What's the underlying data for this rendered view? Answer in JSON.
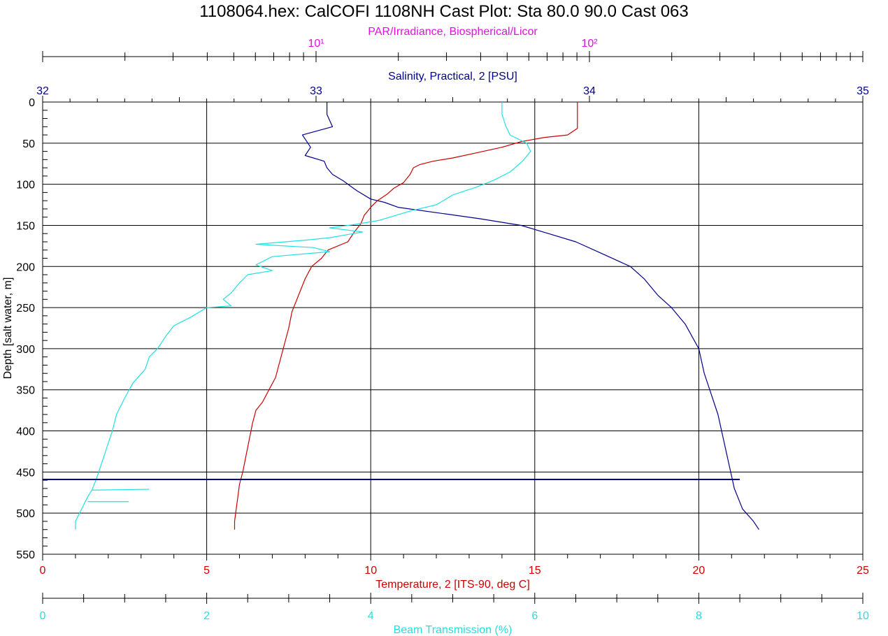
{
  "title": "1108064.hex: CalCOFI 1108NH Cast Plot: Sta 80.0 90.0 Cast 063",
  "colors": {
    "salinity": "#00008b",
    "temperature": "#cc0000",
    "beam": "#22e0e0",
    "par": "#e010e0",
    "grid": "#000000",
    "text": "#000000"
  },
  "chart_data": {
    "type": "line",
    "title": "1108064.hex: CalCOFI 1108NH Cast Plot: Sta 80.0 90.0 Cast 063",
    "grid": true,
    "y_axis": {
      "label": "Depth [salt water, m]",
      "range": [
        0,
        550
      ],
      "inverted": true,
      "ticks": [
        "0",
        "50",
        "100",
        "150",
        "200",
        "250",
        "300",
        "350",
        "400",
        "450",
        "500",
        "550"
      ]
    },
    "x_axes": [
      {
        "id": "par",
        "label": "PAR/Irradiance, Biospherical/Licor",
        "position": "top-outer",
        "scale": "log",
        "range": [
          1,
          1000
        ],
        "tick_labels": [
          "10¹",
          "10²"
        ],
        "color": "#e010e0"
      },
      {
        "id": "salinity",
        "label": "Salinity, Practical, 2 [PSU]",
        "position": "top-inner",
        "range": [
          32,
          35
        ],
        "tick_labels": [
          "32",
          "33",
          "34",
          "35"
        ],
        "color": "#00008b"
      },
      {
        "id": "temperature",
        "label": "Temperature, 2 [ITS-90, deg C]",
        "position": "bottom-inner",
        "range": [
          0,
          25
        ],
        "tick_labels": [
          "0",
          "5",
          "10",
          "15",
          "20",
          "25"
        ],
        "color": "#cc0000"
      },
      {
        "id": "beam",
        "label": "Beam Transmission (%)",
        "position": "bottom-outer",
        "range": [
          0,
          10
        ],
        "tick_labels": [
          "0",
          "2",
          "4",
          "6",
          "8",
          "10"
        ],
        "color": "#22e0e0"
      }
    ],
    "series": [
      {
        "id": "salinity",
        "axis": "salinity",
        "color": "#00008b",
        "points": [
          [
            33.04,
            0
          ],
          [
            33.04,
            15
          ],
          [
            33.06,
            30
          ],
          [
            32.95,
            40
          ],
          [
            32.98,
            55
          ],
          [
            32.96,
            65
          ],
          [
            33.03,
            72
          ],
          [
            33.04,
            80
          ],
          [
            33.06,
            88
          ],
          [
            33.1,
            96
          ],
          [
            33.15,
            108
          ],
          [
            33.2,
            118
          ],
          [
            33.25,
            122
          ],
          [
            33.3,
            128
          ],
          [
            33.45,
            135
          ],
          [
            33.6,
            142
          ],
          [
            33.75,
            150
          ],
          [
            33.85,
            160
          ],
          [
            33.95,
            170
          ],
          [
            34.05,
            185
          ],
          [
            34.15,
            200
          ],
          [
            34.2,
            215
          ],
          [
            34.25,
            235
          ],
          [
            34.3,
            250
          ],
          [
            34.35,
            270
          ],
          [
            34.4,
            300
          ],
          [
            34.42,
            330
          ],
          [
            34.45,
            360
          ],
          [
            34.47,
            380
          ],
          [
            34.49,
            410
          ],
          [
            34.51,
            440
          ],
          [
            34.53,
            470
          ],
          [
            34.56,
            495
          ],
          [
            34.6,
            510
          ],
          [
            34.62,
            520
          ]
        ]
      },
      {
        "id": "temperature",
        "axis": "temperature",
        "color": "#cc0000",
        "points": [
          [
            16.3,
            0
          ],
          [
            16.3,
            32
          ],
          [
            16.0,
            40
          ],
          [
            15.3,
            43
          ],
          [
            14.6,
            48
          ],
          [
            14.0,
            55
          ],
          [
            13.2,
            62
          ],
          [
            12.5,
            68
          ],
          [
            11.9,
            72
          ],
          [
            11.5,
            76
          ],
          [
            11.3,
            80
          ],
          [
            11.2,
            88
          ],
          [
            11.0,
            98
          ],
          [
            10.7,
            105
          ],
          [
            10.5,
            112
          ],
          [
            10.2,
            120
          ],
          [
            10.0,
            128
          ],
          [
            9.8,
            138
          ],
          [
            9.7,
            148
          ],
          [
            9.5,
            158
          ],
          [
            9.3,
            170
          ],
          [
            8.7,
            180
          ],
          [
            8.5,
            190
          ],
          [
            8.2,
            200
          ],
          [
            8.0,
            215
          ],
          [
            7.8,
            235
          ],
          [
            7.6,
            255
          ],
          [
            7.5,
            275
          ],
          [
            7.4,
            290
          ],
          [
            7.3,
            305
          ],
          [
            7.2,
            320
          ],
          [
            7.1,
            335
          ],
          [
            6.9,
            350
          ],
          [
            6.7,
            365
          ],
          [
            6.5,
            375
          ],
          [
            6.4,
            390
          ],
          [
            6.3,
            410
          ],
          [
            6.2,
            430
          ],
          [
            6.1,
            450
          ],
          [
            6.0,
            465
          ],
          [
            5.95,
            480
          ],
          [
            5.9,
            495
          ],
          [
            5.85,
            510
          ],
          [
            5.85,
            520
          ]
        ]
      },
      {
        "id": "beam",
        "axis": "beam",
        "color": "#22e0e0",
        "points": [
          [
            5.6,
            0
          ],
          [
            5.6,
            15
          ],
          [
            5.65,
            30
          ],
          [
            5.7,
            40
          ],
          [
            5.9,
            50
          ],
          [
            5.95,
            60
          ],
          [
            5.85,
            72
          ],
          [
            5.7,
            85
          ],
          [
            5.5,
            95
          ],
          [
            5.3,
            103
          ],
          [
            5.0,
            113
          ],
          [
            4.8,
            125
          ],
          [
            4.5,
            132
          ],
          [
            4.3,
            138
          ],
          [
            4.1,
            144
          ],
          [
            3.8,
            149
          ],
          [
            3.5,
            153
          ],
          [
            3.9,
            158
          ],
          [
            3.5,
            165
          ],
          [
            3.2,
            168
          ],
          [
            2.6,
            173
          ],
          [
            3.3,
            177
          ],
          [
            3.5,
            182
          ],
          [
            2.8,
            188
          ],
          [
            2.6,
            198
          ],
          [
            2.8,
            205
          ],
          [
            2.5,
            210
          ],
          [
            2.4,
            220
          ],
          [
            2.3,
            232
          ],
          [
            2.2,
            240
          ],
          [
            2.3,
            248
          ],
          [
            2.0,
            250
          ],
          [
            1.8,
            262
          ],
          [
            1.6,
            272
          ],
          [
            1.5,
            285
          ],
          [
            1.4,
            300
          ],
          [
            1.3,
            310
          ],
          [
            1.25,
            325
          ],
          [
            1.1,
            342
          ],
          [
            1.0,
            360
          ],
          [
            0.9,
            380
          ],
          [
            0.85,
            400
          ],
          [
            0.8,
            415
          ],
          [
            0.75,
            430
          ],
          [
            0.7,
            445
          ],
          [
            0.65,
            460
          ],
          [
            0.6,
            472
          ],
          [
            0.55,
            480
          ],
          [
            0.5,
            490
          ],
          [
            0.45,
            500
          ],
          [
            0.4,
            510
          ],
          [
            0.4,
            520
          ]
        ]
      },
      {
        "id": "beam_spikes",
        "axis": "beam",
        "color": "#22e0e0",
        "segments": [
          [
            [
              0.6,
              472
            ],
            [
              1.3,
              471
            ]
          ],
          [
            [
              0.55,
              486
            ],
            [
              1.05,
              486
            ]
          ]
        ]
      },
      {
        "id": "bottom_marker",
        "axis": "salinity",
        "color": "#00008b",
        "points": [
          [
            32.0,
            459
          ],
          [
            34.55,
            459
          ]
        ]
      }
    ]
  }
}
